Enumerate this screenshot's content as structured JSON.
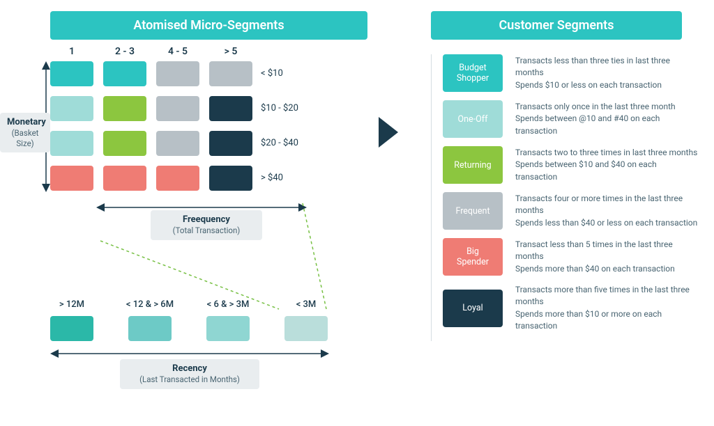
{
  "colors": {
    "titleBg": "#2cc4c1",
    "arrow": "#1b3a4b",
    "axisBox": "#e9edef",
    "dash": "#77c043",
    "text": "#1b3a4b",
    "muted": "#4a6572"
  },
  "left": {
    "title": "Atomised Micro-Segments",
    "colHeaders": [
      "1",
      "2 - 3",
      "4 - 5",
      "> 5"
    ],
    "rowLabels": [
      "< $10",
      "$10 - $20",
      "$20 - $40",
      "> $40"
    ],
    "gridColors": [
      [
        "#2cc4c1",
        "#2cc4c1",
        "#b7c0c6",
        "#b7c0c6"
      ],
      [
        "#9fdcd8",
        "#8cc63f",
        "#b7c0c6",
        "#1b3a4b"
      ],
      [
        "#9fdcd8",
        "#8cc63f",
        "#b7c0c6",
        "#1b3a4b"
      ],
      [
        "#ef7c74",
        "#ef7c74",
        "#ef7c74",
        "#1b3a4b"
      ]
    ],
    "monetaryLabel": "Monetary",
    "monetarySub": "(Basket Size)",
    "frequencyLabel": "Freequency",
    "frequencySub": "(Total Transaction)",
    "recency": {
      "labels": [
        "> 12M",
        "< 12 & > 6M",
        "< 6 & > 3M",
        "< 3M"
      ],
      "colors": [
        "#2bb8a8",
        "#6dcac6",
        "#8fd6d2",
        "#badedb"
      ],
      "axisLabel": "Recency",
      "axisSub": "(Last Transacted in Months)"
    }
  },
  "right": {
    "title": "Customer Segments",
    "segments": [
      {
        "name": "Budget Shopper",
        "color": "#2cc4c1",
        "line1": "Transacts less than three ties in last three months",
        "line2": "Spends $10 or less on each transaction"
      },
      {
        "name": "One-Off",
        "color": "#9fdcd8",
        "line1": "Transacts only once in the last three month",
        "line2": "Spends between @10 and #40 on each transaction"
      },
      {
        "name": "Returning",
        "color": "#8cc63f",
        "line1": "Transacts two to three times in last three months",
        "line2": "Spends between $10 and $40 on each transaction"
      },
      {
        "name": "Frequent",
        "color": "#b7c0c6",
        "line1": "Transacts  four or more times in the last three months",
        "line2": "Spends less than $40 or less on each transaction"
      },
      {
        "name": "Big Spender",
        "color": "#ef7c74",
        "line1": "Transact less than 5 times in the last three months",
        "line2": "Spends more than $40 on each transaction"
      },
      {
        "name": "Loyal",
        "color": "#1b3a4b",
        "line1": "Transacts more than five times in the last three months",
        "line2": "Spends more than $10 or more on each transaction"
      }
    ]
  }
}
